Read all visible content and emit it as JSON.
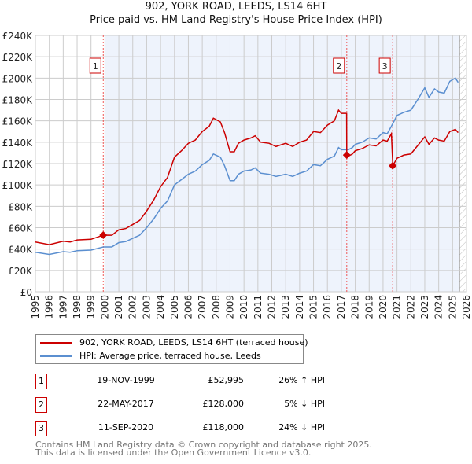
{
  "chart_data": {
    "type": "line",
    "title": "902, YORK ROAD, LEEDS, LS14 6HT",
    "subtitle": "Price paid vs. HM Land Registry's House Price Index (HPI)",
    "xlim": [
      1995,
      2026
    ],
    "ylim": [
      0,
      240
    ],
    "yticks": [
      "£0",
      "£20K",
      "£40K",
      "£60K",
      "£80K",
      "£100K",
      "£120K",
      "£140K",
      "£160K",
      "£180K",
      "£200K",
      "£220K",
      "£240K"
    ],
    "xticks": [
      "1995",
      "1996",
      "1997",
      "1998",
      "1999",
      "2000",
      "2001",
      "2002",
      "2003",
      "2004",
      "2005",
      "2006",
      "2007",
      "2008",
      "2009",
      "2010",
      "2011",
      "2012",
      "2013",
      "2014",
      "2015",
      "2016",
      "2017",
      "2018",
      "2019",
      "2020",
      "2021",
      "2022",
      "2023",
      "2024",
      "2025",
      "2026"
    ],
    "grid": true,
    "series": [
      {
        "name": "902, YORK ROAD, LEEDS, LS14 6HT (terraced house)",
        "color": "#cc0000",
        "points": [
          [
            1995,
            46.6
          ],
          [
            1996,
            44.1
          ],
          [
            1997,
            47.3
          ],
          [
            1997.5,
            46.6
          ],
          [
            1998,
            48.5
          ],
          [
            1999,
            49.1
          ],
          [
            1999.88,
            52.995
          ],
          [
            2000.5,
            52.9
          ],
          [
            2001,
            58
          ],
          [
            2001.5,
            59.2
          ],
          [
            2002,
            63
          ],
          [
            2002.5,
            66.8
          ],
          [
            2003,
            75.6
          ],
          [
            2003.5,
            85.7
          ],
          [
            2004,
            98.3
          ],
          [
            2004.5,
            107
          ],
          [
            2005,
            126
          ],
          [
            2005.5,
            132
          ],
          [
            2006,
            139
          ],
          [
            2006.5,
            142
          ],
          [
            2007,
            150
          ],
          [
            2007.5,
            155
          ],
          [
            2007.8,
            162.5
          ],
          [
            2008.3,
            159
          ],
          [
            2008.6,
            149
          ],
          [
            2009,
            131
          ],
          [
            2009.3,
            131
          ],
          [
            2009.6,
            139
          ],
          [
            2010,
            142
          ],
          [
            2010.5,
            144
          ],
          [
            2010.8,
            146
          ],
          [
            2011.2,
            140
          ],
          [
            2011.8,
            139
          ],
          [
            2012.3,
            136
          ],
          [
            2013,
            139
          ],
          [
            2013.5,
            136
          ],
          [
            2014,
            140
          ],
          [
            2014.5,
            142
          ],
          [
            2015,
            150
          ],
          [
            2015.5,
            149
          ],
          [
            2016,
            156
          ],
          [
            2016.5,
            160
          ],
          [
            2016.8,
            170
          ],
          [
            2017,
            167
          ],
          [
            2017.38,
            167
          ],
          [
            2017.39,
            128
          ],
          [
            2017.5,
            127
          ],
          [
            2017.8,
            129
          ],
          [
            2018,
            132
          ],
          [
            2018.5,
            134
          ],
          [
            2019,
            137.5
          ],
          [
            2019.5,
            136.6
          ],
          [
            2020,
            142
          ],
          [
            2020.3,
            141
          ],
          [
            2020.6,
            148
          ],
          [
            2020.7,
            118
          ],
          [
            2021,
            125
          ],
          [
            2021.5,
            128
          ],
          [
            2022,
            129
          ],
          [
            2022.5,
            137
          ],
          [
            2023,
            145
          ],
          [
            2023.3,
            138
          ],
          [
            2023.7,
            144
          ],
          [
            2024,
            142
          ],
          [
            2024.4,
            141
          ],
          [
            2024.8,
            150
          ],
          [
            2025.2,
            152
          ],
          [
            2025.4,
            149
          ]
        ]
      },
      {
        "name": "HPI: Average price, terraced house, Leeds",
        "color": "#5b8fd0",
        "points": [
          [
            1995,
            37
          ],
          [
            1996,
            35
          ],
          [
            1997,
            37.5
          ],
          [
            1997.5,
            37
          ],
          [
            1998,
            38.5
          ],
          [
            1999,
            39
          ],
          [
            1999.9,
            42
          ],
          [
            2000.5,
            42
          ],
          [
            2001,
            46
          ],
          [
            2001.5,
            47
          ],
          [
            2002,
            50
          ],
          [
            2002.5,
            53
          ],
          [
            2003,
            60
          ],
          [
            2003.5,
            68
          ],
          [
            2004,
            78
          ],
          [
            2004.5,
            85
          ],
          [
            2005,
            100
          ],
          [
            2005.5,
            105
          ],
          [
            2006,
            110
          ],
          [
            2006.5,
            113
          ],
          [
            2007,
            119
          ],
          [
            2007.5,
            123
          ],
          [
            2007.8,
            129
          ],
          [
            2008.3,
            126
          ],
          [
            2008.6,
            118
          ],
          [
            2009,
            104
          ],
          [
            2009.3,
            104
          ],
          [
            2009.6,
            110
          ],
          [
            2010,
            113
          ],
          [
            2010.5,
            114
          ],
          [
            2010.8,
            116
          ],
          [
            2011.2,
            111
          ],
          [
            2011.8,
            110
          ],
          [
            2012.3,
            108
          ],
          [
            2013,
            110
          ],
          [
            2013.5,
            108
          ],
          [
            2014,
            111
          ],
          [
            2014.5,
            113
          ],
          [
            2015,
            119
          ],
          [
            2015.5,
            118
          ],
          [
            2016,
            124
          ],
          [
            2016.5,
            127
          ],
          [
            2016.8,
            135
          ],
          [
            2017,
            133
          ],
          [
            2017.5,
            133
          ],
          [
            2017.8,
            135
          ],
          [
            2018,
            138
          ],
          [
            2018.5,
            140
          ],
          [
            2019,
            144
          ],
          [
            2019.5,
            143
          ],
          [
            2020,
            149
          ],
          [
            2020.3,
            148
          ],
          [
            2020.6,
            155
          ],
          [
            2021,
            165
          ],
          [
            2021.5,
            168
          ],
          [
            2022,
            170
          ],
          [
            2022.5,
            180
          ],
          [
            2023,
            191
          ],
          [
            2023.3,
            182
          ],
          [
            2023.7,
            190
          ],
          [
            2024,
            187
          ],
          [
            2024.4,
            186
          ],
          [
            2024.8,
            197
          ],
          [
            2025.2,
            200
          ],
          [
            2025.4,
            196
          ]
        ]
      }
    ],
    "sales": [
      {
        "label": "1",
        "x": 1999.88,
        "y": 52.995
      },
      {
        "label": "2",
        "x": 2017.39,
        "y": 128
      },
      {
        "label": "3",
        "x": 2020.69,
        "y": 118
      }
    ],
    "shaded_range": [
      2000,
      2025.5
    ],
    "hatched_range": [
      2025.5,
      2026
    ],
    "legend_placement": "bottom"
  },
  "transactions": [
    {
      "num": "1",
      "date": "19-NOV-1999",
      "price": "£52,995",
      "hpi": "26% ↑ HPI"
    },
    {
      "num": "2",
      "date": "22-MAY-2017",
      "price": "£128,000",
      "hpi": "5% ↓ HPI"
    },
    {
      "num": "3",
      "date": "11-SEP-2020",
      "price": "£118,000",
      "hpi": "24% ↓ HPI"
    }
  ],
  "footer": {
    "line1": "Contains HM Land Registry data © Crown copyright and database right 2025.",
    "line2": "This data is licensed under the Open Government Licence v3.0."
  }
}
